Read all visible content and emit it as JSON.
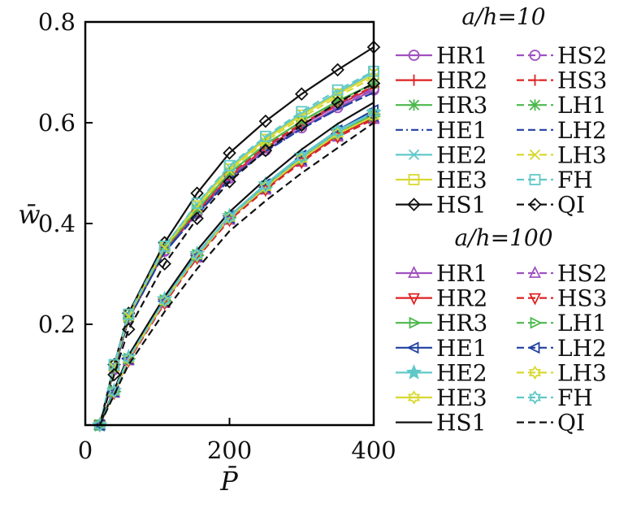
{
  "chart_data": {
    "type": "line",
    "xlabel": "P̄",
    "ylabel": "w̄",
    "xlim": [
      0,
      400
    ],
    "ylim": [
      0,
      0.8
    ],
    "xticks": [
      {
        "v": 0,
        "label": "0"
      },
      {
        "v": 200,
        "label": "200"
      },
      {
        "v": 400,
        "label": "400"
      }
    ],
    "yticks": [
      {
        "v": 0.2,
        "label": "0.2"
      },
      {
        "v": 0.4,
        "label": "0.4"
      },
      {
        "v": 0.6,
        "label": "0.6"
      },
      {
        "v": 0.8,
        "label": "0.8"
      }
    ],
    "grid": false,
    "x": [
      20,
      40,
      60,
      110,
      155,
      200,
      250,
      300,
      350,
      400
    ],
    "groups": [
      {
        "title": "a/h=10",
        "series": [
          {
            "name": "HR1",
            "color": "#a050c0",
            "dash": "solid",
            "marker": "circle",
            "values": [
              0,
              0.11,
              0.21,
              0.345,
              0.42,
              0.49,
              0.545,
              0.59,
              0.63,
              0.665
            ]
          },
          {
            "name": "HR2",
            "color": "#dd2222",
            "dash": "solid",
            "marker": "plus",
            "values": [
              0,
              0.11,
              0.21,
              0.347,
              0.423,
              0.493,
              0.55,
              0.595,
              0.635,
              0.67
            ]
          },
          {
            "name": "HR3",
            "color": "#4cb84c",
            "dash": "solid",
            "marker": "star",
            "values": [
              0,
              0.112,
              0.213,
              0.35,
              0.428,
              0.5,
              0.557,
              0.603,
              0.643,
              0.678
            ]
          },
          {
            "name": "HE1",
            "color": "#2040a0",
            "dash": "dashdot",
            "marker": "none",
            "values": [
              0,
              0.11,
              0.21,
              0.343,
              0.418,
              0.488,
              0.543,
              0.588,
              0.627,
              0.66
            ]
          },
          {
            "name": "HE2",
            "color": "#60c8c8",
            "dash": "solid",
            "marker": "x",
            "values": [
              0,
              0.118,
              0.22,
              0.355,
              0.438,
              0.512,
              0.57,
              0.618,
              0.66,
              0.7
            ]
          },
          {
            "name": "HE3",
            "color": "#d8d830",
            "dash": "solid",
            "marker": "square",
            "values": [
              0,
              0.118,
              0.218,
              0.353,
              0.435,
              0.508,
              0.567,
              0.615,
              0.657,
              0.695
            ]
          },
          {
            "name": "HS1",
            "color": "#111111",
            "dash": "solid",
            "marker": "diamond",
            "values": [
              0,
              0.12,
              0.222,
              0.362,
              0.46,
              0.54,
              0.603,
              0.657,
              0.705,
              0.75
            ]
          },
          {
            "name": "HS2",
            "color": "#a050c0",
            "dash": "dash",
            "marker": "circle",
            "values": [
              0,
              0.112,
              0.212,
              0.347,
              0.424,
              0.494,
              0.55,
              0.595,
              0.635,
              0.668
            ]
          },
          {
            "name": "HS3",
            "color": "#dd2222",
            "dash": "dash",
            "marker": "plus",
            "values": [
              0,
              0.113,
              0.213,
              0.349,
              0.426,
              0.497,
              0.553,
              0.598,
              0.638,
              0.672
            ]
          },
          {
            "name": "LH1",
            "color": "#4cb84c",
            "dash": "dash",
            "marker": "star",
            "values": [
              0,
              0.112,
              0.213,
              0.35,
              0.428,
              0.5,
              0.557,
              0.603,
              0.643,
              0.678
            ]
          },
          {
            "name": "LH2",
            "color": "#2040a0",
            "dash": "dash",
            "marker": "none",
            "values": [
              0,
              0.11,
              0.21,
              0.343,
              0.418,
              0.488,
              0.543,
              0.588,
              0.627,
              0.66
            ]
          },
          {
            "name": "LH3",
            "color": "#d8d830",
            "dash": "dash",
            "marker": "x",
            "values": [
              0,
              0.115,
              0.216,
              0.352,
              0.432,
              0.505,
              0.563,
              0.61,
              0.652,
              0.69
            ]
          },
          {
            "name": "FH",
            "color": "#60c8c8",
            "dash": "dash",
            "marker": "square",
            "values": [
              0,
              0.12,
              0.22,
              0.355,
              0.44,
              0.515,
              0.573,
              0.622,
              0.665,
              0.702
            ]
          },
          {
            "name": "QI",
            "color": "#111111",
            "dash": "dash",
            "marker": "diamond",
            "values": [
              0,
              0.1,
              0.19,
              0.32,
              0.41,
              0.483,
              0.545,
              0.595,
              0.64,
              0.678
            ]
          }
        ]
      },
      {
        "title": "a/h=100",
        "series": [
          {
            "name": "HR1",
            "color": "#a050c0",
            "dash": "solid",
            "marker": "triangle-up",
            "values": [
              0,
              0.065,
              0.13,
              0.245,
              0.335,
              0.41,
              0.47,
              0.525,
              0.575,
              0.61
            ]
          },
          {
            "name": "HR2",
            "color": "#dd2222",
            "dash": "solid",
            "marker": "triangle-down",
            "values": [
              0,
              0.065,
              0.13,
              0.245,
              0.335,
              0.41,
              0.47,
              0.525,
              0.575,
              0.61
            ]
          },
          {
            "name": "HR3",
            "color": "#4cb84c",
            "dash": "solid",
            "marker": "triangle-right",
            "values": [
              0,
              0.067,
              0.132,
              0.248,
              0.338,
              0.413,
              0.474,
              0.53,
              0.58,
              0.617
            ]
          },
          {
            "name": "HE1",
            "color": "#2040a0",
            "dash": "solid",
            "marker": "triangle-left",
            "values": [
              0,
              0.067,
              0.133,
              0.25,
              0.34,
              0.415,
              0.478,
              0.535,
              0.585,
              0.625
            ]
          },
          {
            "name": "HE2",
            "color": "#60c8c8",
            "dash": "solid",
            "marker": "star5",
            "values": [
              0,
              0.068,
              0.135,
              0.25,
              0.34,
              0.415,
              0.478,
              0.535,
              0.585,
              0.62
            ]
          },
          {
            "name": "HE3",
            "color": "#d8d830",
            "dash": "solid",
            "marker": "hexagram",
            "values": [
              0,
              0.066,
              0.131,
              0.246,
              0.336,
              0.411,
              0.472,
              0.528,
              0.578,
              0.613
            ]
          },
          {
            "name": "HS1",
            "color": "#111111",
            "dash": "solid",
            "marker": "none",
            "values": [
              0,
              0.07,
              0.138,
              0.255,
              0.347,
              0.423,
              0.488,
              0.547,
              0.598,
              0.64
            ]
          },
          {
            "name": "HS2",
            "color": "#a050c0",
            "dash": "dash",
            "marker": "triangle-up",
            "values": [
              0,
              0.064,
              0.128,
              0.242,
              0.332,
              0.407,
              0.467,
              0.522,
              0.572,
              0.607
            ]
          },
          {
            "name": "HS3",
            "color": "#dd2222",
            "dash": "dash",
            "marker": "triangle-down",
            "values": [
              0,
              0.064,
              0.128,
              0.242,
              0.332,
              0.407,
              0.467,
              0.522,
              0.572,
              0.607
            ]
          },
          {
            "name": "LH1",
            "color": "#4cb84c",
            "dash": "dash",
            "marker": "triangle-right",
            "values": [
              0,
              0.066,
              0.131,
              0.246,
              0.336,
              0.411,
              0.472,
              0.528,
              0.578,
              0.613
            ]
          },
          {
            "name": "LH2",
            "color": "#2040a0",
            "dash": "dash",
            "marker": "triangle-left",
            "values": [
              0,
              0.066,
              0.131,
              0.246,
              0.336,
              0.411,
              0.472,
              0.528,
              0.578,
              0.613
            ]
          },
          {
            "name": "LH3",
            "color": "#d8d830",
            "dash": "dash",
            "marker": "hexagram",
            "values": [
              0,
              0.066,
              0.131,
              0.246,
              0.336,
              0.411,
              0.472,
              0.528,
              0.578,
              0.613
            ]
          },
          {
            "name": "FH",
            "color": "#60c8c8",
            "dash": "dash",
            "marker": "hexagram",
            "values": [
              0,
              0.067,
              0.133,
              0.248,
              0.338,
              0.413,
              0.475,
              0.532,
              0.582,
              0.62
            ]
          },
          {
            "name": "QI",
            "color": "#111111",
            "dash": "dash",
            "marker": "none",
            "values": [
              0,
              0.06,
              0.12,
              0.225,
              0.31,
              0.385,
              0.445,
              0.5,
              0.55,
              0.6
            ]
          }
        ]
      }
    ]
  }
}
